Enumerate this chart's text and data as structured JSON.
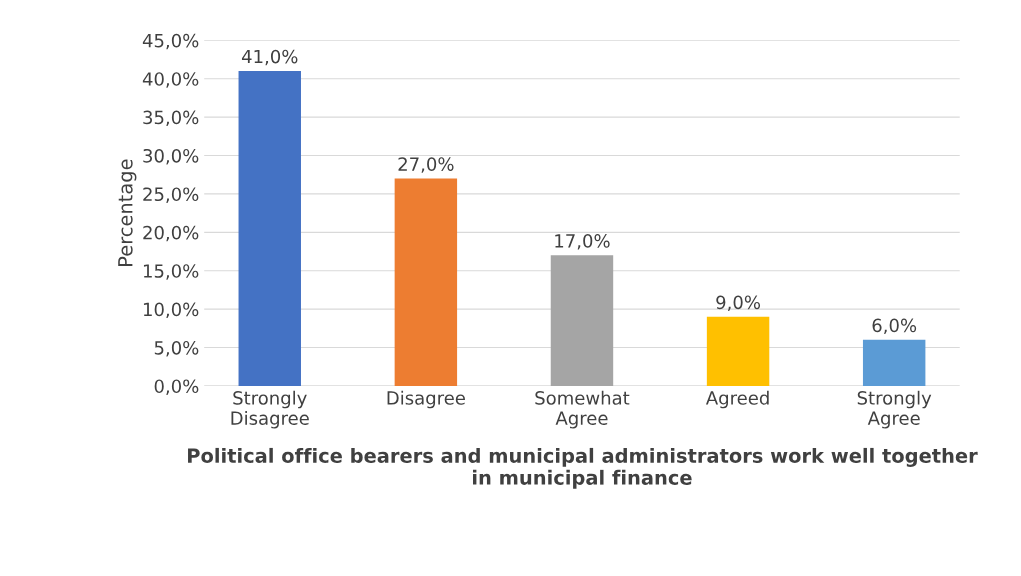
{
  "chart_data": {
    "type": "bar",
    "categories": [
      "Strongly\nDisagree",
      "Disagree",
      "Somewhat\nAgree",
      "Agreed",
      "Strongly\nAgree"
    ],
    "values": [
      41,
      27,
      17,
      9,
      6
    ],
    "colors": [
      "#4472c4",
      "#ed7d31",
      "#a5a5a5",
      "#ffc000",
      "#5b9bd5"
    ],
    "value_labels": [
      "41,0%",
      "27,0%",
      "17,0%",
      "9,0%",
      "6,0%"
    ],
    "xlabel": "Political office bearers and municipal administrators work well together\nin municipal finance",
    "ylabel": "Percentage",
    "ylim": [
      0,
      45
    ],
    "yticks": [
      {
        "value": 0,
        "label": "0,0%"
      },
      {
        "value": 5,
        "label": "5,0%"
      },
      {
        "value": 10,
        "label": "10,0%"
      },
      {
        "value": 15,
        "label": "15,0%"
      },
      {
        "value": 20,
        "label": "20,0%"
      },
      {
        "value": 25,
        "label": "25,0%"
      },
      {
        "value": 30,
        "label": "30,0%"
      },
      {
        "value": 35,
        "label": "35,0%"
      },
      {
        "value": 40,
        "label": "40,0%"
      },
      {
        "value": 45,
        "label": "45,0%"
      }
    ],
    "grid": "y"
  }
}
